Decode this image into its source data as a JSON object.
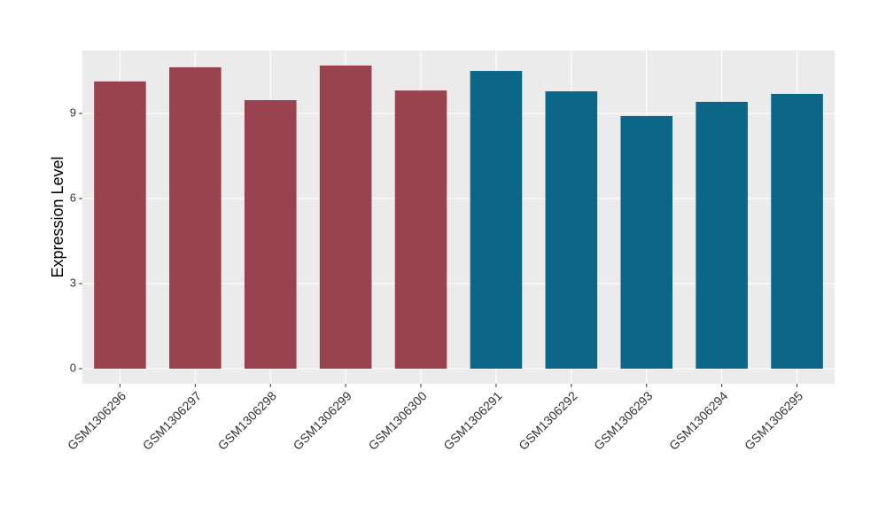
{
  "chart_data": {
    "type": "bar",
    "ylabel": "Expression Level",
    "categories": [
      "GSM1306296",
      "GSM1306297",
      "GSM1306298",
      "GSM1306299",
      "GSM1306300",
      "GSM1306291",
      "GSM1306292",
      "GSM1306293",
      "GSM1306294",
      "GSM1306295"
    ],
    "values": [
      10.13,
      10.63,
      9.47,
      10.69,
      9.81,
      10.5,
      9.78,
      8.91,
      9.41,
      9.69
    ],
    "colors": [
      "#9a4350",
      "#9a4350",
      "#9a4350",
      "#9a4350",
      "#9a4350",
      "#0b6688",
      "#0b6688",
      "#0b6688",
      "#0b6688",
      "#0b6688"
    ],
    "ylim": [
      -0.53,
      11.22
    ],
    "yticks": [
      0,
      3,
      6,
      9
    ],
    "grid": true
  }
}
